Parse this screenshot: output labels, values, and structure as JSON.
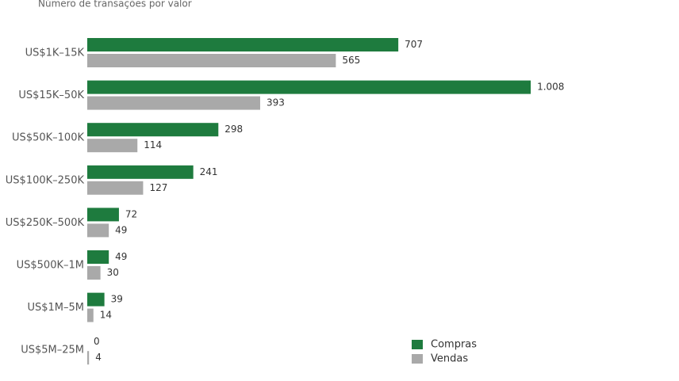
{
  "chart_data": {
    "type": "hbar",
    "title": "Número de transações por valor",
    "categories": [
      "US$1K–15K",
      "US$15K–50K",
      "US$50K–100K",
      "US$100K–250K",
      "US$250K–500K",
      "US$500K–1M",
      "US$1M–5M",
      "US$5M–25M"
    ],
    "series": [
      {
        "name": "Compras",
        "color": "#1e7b3e",
        "values": [
          707,
          1008,
          298,
          241,
          72,
          49,
          39,
          0
        ],
        "value_labels": [
          "707",
          "1.008",
          "298",
          "241",
          "72",
          "49",
          "39",
          "0"
        ]
      },
      {
        "name": "Vendas",
        "color": "#a9a9a9",
        "values": [
          565,
          393,
          114,
          127,
          49,
          30,
          14,
          4
        ]
      }
    ],
    "xlim": [
      0,
      1345
    ],
    "legend": "lower right"
  }
}
